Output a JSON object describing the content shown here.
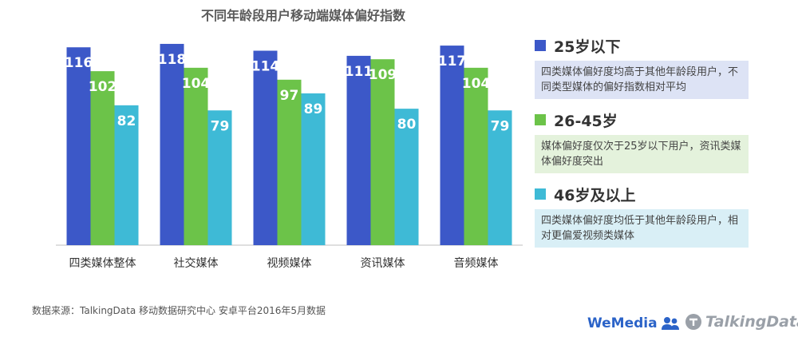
{
  "chart_data": {
    "type": "bar",
    "title": "不同年龄段用户移动端媒体偏好指数",
    "categories": [
      "四类媒体整体",
      "社交媒体",
      "视频媒体",
      "资讯媒体",
      "音频媒体"
    ],
    "series": [
      {
        "name": "25岁以下",
        "color": "#3c58c8",
        "values": [
          116,
          118,
          114,
          111,
          117
        ]
      },
      {
        "name": "26-45岁",
        "color": "#6cc349",
        "values": [
          102,
          104,
          97,
          109,
          104
        ]
      },
      {
        "name": "46岁及以上",
        "color": "#3ebad6",
        "values": [
          82,
          79,
          89,
          80,
          79
        ]
      }
    ],
    "ylim": [
      0,
      125
    ],
    "grid": false,
    "legend_position": "right"
  },
  "legend_notes": [
    {
      "text": "四类媒体偏好度均高于其他年龄段用户，不同类型媒体的偏好指数相对平均",
      "bg": "#dde3f5"
    },
    {
      "text": "媒体偏好度仅次于25岁以下用户，资讯类媒体偏好度突出",
      "bg": "#e4f2dc"
    },
    {
      "text": "四类媒体偏好度均低于其他年龄段用户，相对更偏爱视频类媒体",
      "bg": "#d9eff6"
    }
  ],
  "footer": {
    "source": "数据来源：TalkingData 移动数据研究中心 安卓平台2016年5月数据",
    "brand_wemedia": "WeMedia",
    "brand_td": "TalkingData"
  },
  "icons": {
    "wemedia": "people-icon",
    "talkingdata": "td-logo-icon"
  }
}
